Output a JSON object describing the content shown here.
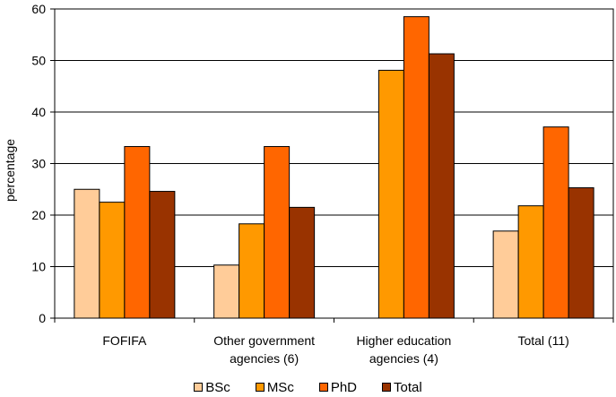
{
  "chart_data": {
    "type": "bar",
    "ylabel": "percentage",
    "ylim": [
      0,
      60
    ],
    "yticks": [
      0,
      10,
      20,
      30,
      40,
      50,
      60
    ],
    "grid": "horizontal",
    "legend_position": "bottom",
    "categories": [
      [
        "FOFIFA"
      ],
      [
        "Other government",
        "agencies (6)"
      ],
      [
        "Higher education",
        "agencies (4)"
      ],
      [
        "Total (11)"
      ]
    ],
    "series": [
      {
        "name": "BSc",
        "color": "#FFCC99",
        "values": [
          25.0,
          10.3,
          null,
          16.9
        ]
      },
      {
        "name": "MSc",
        "color": "#FF9900",
        "values": [
          22.5,
          18.3,
          48.1,
          21.8
        ]
      },
      {
        "name": "PhD",
        "color": "#FF6600",
        "values": [
          33.3,
          33.3,
          58.5,
          37.1
        ]
      },
      {
        "name": "Total",
        "color": "#993300",
        "values": [
          24.6,
          21.5,
          51.3,
          25.3
        ]
      }
    ]
  }
}
